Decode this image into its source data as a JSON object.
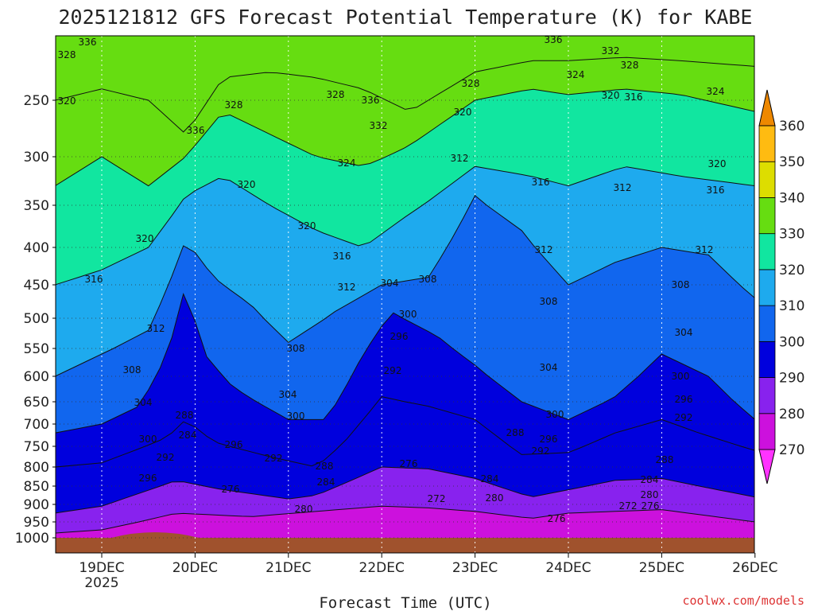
{
  "chart_data": {
    "type": "heatmap",
    "title": "2025121812 GFS Forecast Potential Temperature (K) for KABE",
    "xlabel": "Forecast Time (UTC)",
    "ylabel": "",
    "credit": "coolwx.com/models",
    "y_scale": "log-pressure (inverted)",
    "ylim": [
      1000,
      200
    ],
    "y_ticks": [
      1000,
      950,
      900,
      850,
      800,
      750,
      700,
      650,
      600,
      550,
      500,
      450,
      400,
      350,
      300,
      250
    ],
    "x_ticks": [
      {
        "label": "19DEC",
        "sub": "2025",
        "day": 19
      },
      {
        "label": "20DEC",
        "sub": "",
        "day": 20
      },
      {
        "label": "21DEC",
        "sub": "",
        "day": 21
      },
      {
        "label": "22DEC",
        "sub": "",
        "day": 22
      },
      {
        "label": "23DEC",
        "sub": "",
        "day": 23
      },
      {
        "label": "24DEC",
        "sub": "",
        "day": 24
      },
      {
        "label": "25DEC",
        "sub": "",
        "day": 25
      },
      {
        "label": "26DEC",
        "sub": "",
        "day": 26
      }
    ],
    "xlim_day": [
      18.5,
      26.0
    ],
    "grid": true,
    "colorbar": {
      "placement": "right",
      "ticks": [
        270,
        280,
        290,
        300,
        310,
        320,
        330,
        340,
        350,
        360
      ],
      "bins": [
        {
          "lo": 260,
          "hi": 270,
          "color": "#ff33ff"
        },
        {
          "lo": 270,
          "hi": 280,
          "color": "#cc11dd"
        },
        {
          "lo": 280,
          "hi": 290,
          "color": "#8822ee"
        },
        {
          "lo": 290,
          "hi": 300,
          "color": "#0000dd"
        },
        {
          "lo": 300,
          "hi": 310,
          "color": "#1166ee"
        },
        {
          "lo": 310,
          "hi": 320,
          "color": "#1eaaee"
        },
        {
          "lo": 320,
          "hi": 330,
          "color": "#11e6a0"
        },
        {
          "lo": 330,
          "hi": 340,
          "color": "#66dd11"
        },
        {
          "lo": 340,
          "hi": 350,
          "color": "#dddd00"
        },
        {
          "lo": 350,
          "hi": 360,
          "color": "#ffbb11"
        },
        {
          "lo": 360,
          "hi": 370,
          "color": "#ee8800"
        }
      ]
    },
    "contour_interval": 4,
    "isentropes": [
      {
        "theta": 276,
        "levels": [
          [
            "18.5",
            985
          ],
          [
            "19.0",
            975
          ],
          [
            "19.8",
            925
          ],
          [
            "20.6",
            935
          ],
          [
            "21.3",
            920
          ],
          [
            "22.0",
            905
          ],
          [
            "22.5",
            910
          ],
          [
            "23.0",
            920
          ],
          [
            "23.6",
            940
          ],
          [
            "24.0",
            925
          ],
          [
            "25.0",
            915
          ],
          [
            "26.0",
            950
          ]
        ]
      },
      {
        "theta": 284,
        "levels": [
          [
            "18.5",
            925
          ],
          [
            "19.0",
            905
          ],
          [
            "19.8",
            835
          ],
          [
            "20.3",
            860
          ],
          [
            "21.0",
            885
          ],
          [
            "21.3",
            875
          ],
          [
            "22.0",
            800
          ],
          [
            "22.5",
            805
          ],
          [
            "23.0",
            830
          ],
          [
            "23.6",
            880
          ],
          [
            "24.0",
            860
          ],
          [
            "24.5",
            835
          ],
          [
            "25.0",
            830
          ],
          [
            "26.0",
            880
          ]
        ]
      },
      {
        "theta": 292,
        "levels": [
          [
            "18.5",
            800
          ],
          [
            "19.0",
            790
          ],
          [
            "19.7",
            730
          ],
          [
            "19.9",
            690
          ],
          [
            "20.2",
            740
          ],
          [
            "20.8",
            775
          ],
          [
            "21.3",
            800
          ],
          [
            "21.6",
            740
          ],
          [
            "22.0",
            640
          ],
          [
            "22.5",
            660
          ],
          [
            "23.0",
            690
          ],
          [
            "23.5",
            770
          ],
          [
            "24.0",
            765
          ],
          [
            "24.5",
            720
          ],
          [
            "25.0",
            690
          ],
          [
            "25.4",
            720
          ],
          [
            "26.0",
            760
          ]
        ]
      },
      {
        "theta": 300,
        "levels": [
          [
            "18.5",
            720
          ],
          [
            "19.0",
            700
          ],
          [
            "19.4",
            660
          ],
          [
            "19.7",
            560
          ],
          [
            "19.9",
            450
          ],
          [
            "20.1",
            560
          ],
          [
            "20.4",
            620
          ],
          [
            "21.0",
            690
          ],
          [
            "21.4",
            690
          ],
          [
            "21.8",
            560
          ],
          [
            "22.1",
            490
          ],
          [
            "22.6",
            530
          ],
          [
            "23.0",
            580
          ],
          [
            "23.5",
            650
          ],
          [
            "24.0",
            690
          ],
          [
            "24.5",
            640
          ],
          [
            "25.0",
            560
          ],
          [
            "25.5",
            600
          ],
          [
            "26.0",
            690
          ]
        ]
      },
      {
        "theta": 308,
        "levels": [
          [
            "18.5",
            600
          ],
          [
            "19.0",
            560
          ],
          [
            "19.5",
            520
          ],
          [
            "19.9",
            390
          ],
          [
            "20.2",
            440
          ],
          [
            "20.6",
            480
          ],
          [
            "21.0",
            540
          ],
          [
            "21.5",
            490
          ],
          [
            "22.0",
            450
          ],
          [
            "22.5",
            440
          ],
          [
            "23.0",
            340
          ],
          [
            "23.5",
            380
          ],
          [
            "24.0",
            450
          ],
          [
            "24.5",
            420
          ],
          [
            "25.0",
            400
          ],
          [
            "25.5",
            410
          ],
          [
            "26.0",
            470
          ]
        ]
      },
      {
        "theta": 316,
        "levels": [
          [
            "18.5",
            450
          ],
          [
            "19.0",
            430
          ],
          [
            "19.5",
            400
          ],
          [
            "19.9",
            340
          ],
          [
            "20.3",
            320
          ],
          [
            "20.8",
            350
          ],
          [
            "21.3",
            380
          ],
          [
            "21.8",
            400
          ],
          [
            "22.3",
            360
          ],
          [
            "23.0",
            310
          ],
          [
            "23.6",
            320
          ],
          [
            "24.0",
            330
          ],
          [
            "24.6",
            310
          ],
          [
            "25.2",
            320
          ],
          [
            "26.0",
            330
          ]
        ]
      },
      {
        "theta": 324,
        "levels": [
          [
            "18.5",
            330
          ],
          [
            "19.0",
            300
          ],
          [
            "19.5",
            330
          ],
          [
            "19.9",
            300
          ],
          [
            "20.3",
            260
          ],
          [
            "20.8",
            280
          ],
          [
            "21.3",
            300
          ],
          [
            "21.8",
            310
          ],
          [
            "22.3",
            290
          ],
          [
            "23.0",
            250
          ],
          [
            "23.6",
            240
          ],
          [
            "24.0",
            245
          ],
          [
            "24.6",
            240
          ],
          [
            "25.2",
            245
          ],
          [
            "26.0",
            260
          ]
        ]
      },
      {
        "theta": 332,
        "levels": [
          [
            "18.5",
            250
          ],
          [
            "19.0",
            240
          ],
          [
            "19.5",
            250
          ],
          [
            "19.9",
            280
          ],
          [
            "20.3",
            230
          ],
          [
            "20.8",
            225
          ],
          [
            "21.3",
            230
          ],
          [
            "21.8",
            240
          ],
          [
            "22.3",
            260
          ],
          [
            "23.0",
            225
          ],
          [
            "23.6",
            215
          ],
          [
            "24.0",
            215
          ],
          [
            "24.6",
            212
          ],
          [
            "25.2",
            215
          ],
          [
            "26.0",
            220
          ]
        ]
      }
    ],
    "contour_labels": [
      {
        "text": "336",
        "x": 110,
        "y": 57
      },
      {
        "text": "328",
        "x": 84,
        "y": 73
      },
      {
        "text": "320",
        "x": 84,
        "y": 131
      },
      {
        "text": "336",
        "x": 246,
        "y": 168
      },
      {
        "text": "328",
        "x": 294,
        "y": 136
      },
      {
        "text": "328",
        "x": 422,
        "y": 123
      },
      {
        "text": "336",
        "x": 466,
        "y": 130
      },
      {
        "text": "332",
        "x": 476,
        "y": 162
      },
      {
        "text": "324",
        "x": 436,
        "y": 209
      },
      {
        "text": "320",
        "x": 582,
        "y": 145
      },
      {
        "text": "328",
        "x": 592,
        "y": 109
      },
      {
        "text": "336",
        "x": 696,
        "y": 54
      },
      {
        "text": "332",
        "x": 768,
        "y": 68
      },
      {
        "text": "328",
        "x": 792,
        "y": 86
      },
      {
        "text": "324",
        "x": 724,
        "y": 98
      },
      {
        "text": "320",
        "x": 768,
        "y": 124
      },
      {
        "text": "316",
        "x": 797,
        "y": 126
      },
      {
        "text": "324",
        "x": 900,
        "y": 119
      },
      {
        "text": "320",
        "x": 902,
        "y": 210
      },
      {
        "text": "316",
        "x": 900,
        "y": 243
      },
      {
        "text": "312",
        "x": 578,
        "y": 203
      },
      {
        "text": "316",
        "x": 680,
        "y": 233
      },
      {
        "text": "312",
        "x": 783,
        "y": 240
      },
      {
        "text": "320",
        "x": 310,
        "y": 236
      },
      {
        "text": "320",
        "x": 386,
        "y": 288
      },
      {
        "text": "320",
        "x": 182,
        "y": 304
      },
      {
        "text": "316",
        "x": 430,
        "y": 326
      },
      {
        "text": "312",
        "x": 684,
        "y": 318
      },
      {
        "text": "312",
        "x": 886,
        "y": 318
      },
      {
        "text": "316",
        "x": 118,
        "y": 355
      },
      {
        "text": "312",
        "x": 436,
        "y": 365
      },
      {
        "text": "304",
        "x": 490,
        "y": 360
      },
      {
        "text": "308",
        "x": 538,
        "y": 355
      },
      {
        "text": "308",
        "x": 690,
        "y": 383
      },
      {
        "text": "308",
        "x": 856,
        "y": 362
      },
      {
        "text": "300",
        "x": 513,
        "y": 399
      },
      {
        "text": "312",
        "x": 196,
        "y": 417
      },
      {
        "text": "296",
        "x": 502,
        "y": 427
      },
      {
        "text": "304",
        "x": 860,
        "y": 422
      },
      {
        "text": "308",
        "x": 372,
        "y": 442
      },
      {
        "text": "292",
        "x": 494,
        "y": 470
      },
      {
        "text": "304",
        "x": 690,
        "y": 466
      },
      {
        "text": "308",
        "x": 166,
        "y": 469
      },
      {
        "text": "300",
        "x": 856,
        "y": 477
      },
      {
        "text": "304",
        "x": 362,
        "y": 500
      },
      {
        "text": "296",
        "x": 860,
        "y": 506
      },
      {
        "text": "304",
        "x": 180,
        "y": 510
      },
      {
        "text": "300",
        "x": 372,
        "y": 527
      },
      {
        "text": "288",
        "x": 232,
        "y": 526
      },
      {
        "text": "292",
        "x": 860,
        "y": 529
      },
      {
        "text": "300",
        "x": 698,
        "y": 525
      },
      {
        "text": "284",
        "x": 236,
        "y": 551
      },
      {
        "text": "296",
        "x": 294,
        "y": 563
      },
      {
        "text": "300",
        "x": 186,
        "y": 556
      },
      {
        "text": "288",
        "x": 648,
        "y": 548
      },
      {
        "text": "296",
        "x": 690,
        "y": 556
      },
      {
        "text": "292",
        "x": 680,
        "y": 571
      },
      {
        "text": "292",
        "x": 208,
        "y": 579
      },
      {
        "text": "292",
        "x": 344,
        "y": 580
      },
      {
        "text": "288",
        "x": 408,
        "y": 590
      },
      {
        "text": "276",
        "x": 514,
        "y": 587
      },
      {
        "text": "288",
        "x": 836,
        "y": 582
      },
      {
        "text": "296",
        "x": 186,
        "y": 605
      },
      {
        "text": "284",
        "x": 410,
        "y": 610
      },
      {
        "text": "284",
        "x": 616,
        "y": 606
      },
      {
        "text": "284",
        "x": 817,
        "y": 607
      },
      {
        "text": "276",
        "x": 290,
        "y": 619
      },
      {
        "text": "272",
        "x": 549,
        "y": 631
      },
      {
        "text": "280",
        "x": 622,
        "y": 630
      },
      {
        "text": "280",
        "x": 817,
        "y": 626
      },
      {
        "text": "280",
        "x": 382,
        "y": 644
      },
      {
        "text": "272",
        "x": 790,
        "y": 640
      },
      {
        "text": "276",
        "x": 818,
        "y": 640
      },
      {
        "text": "276",
        "x": 700,
        "y": 656
      }
    ]
  }
}
